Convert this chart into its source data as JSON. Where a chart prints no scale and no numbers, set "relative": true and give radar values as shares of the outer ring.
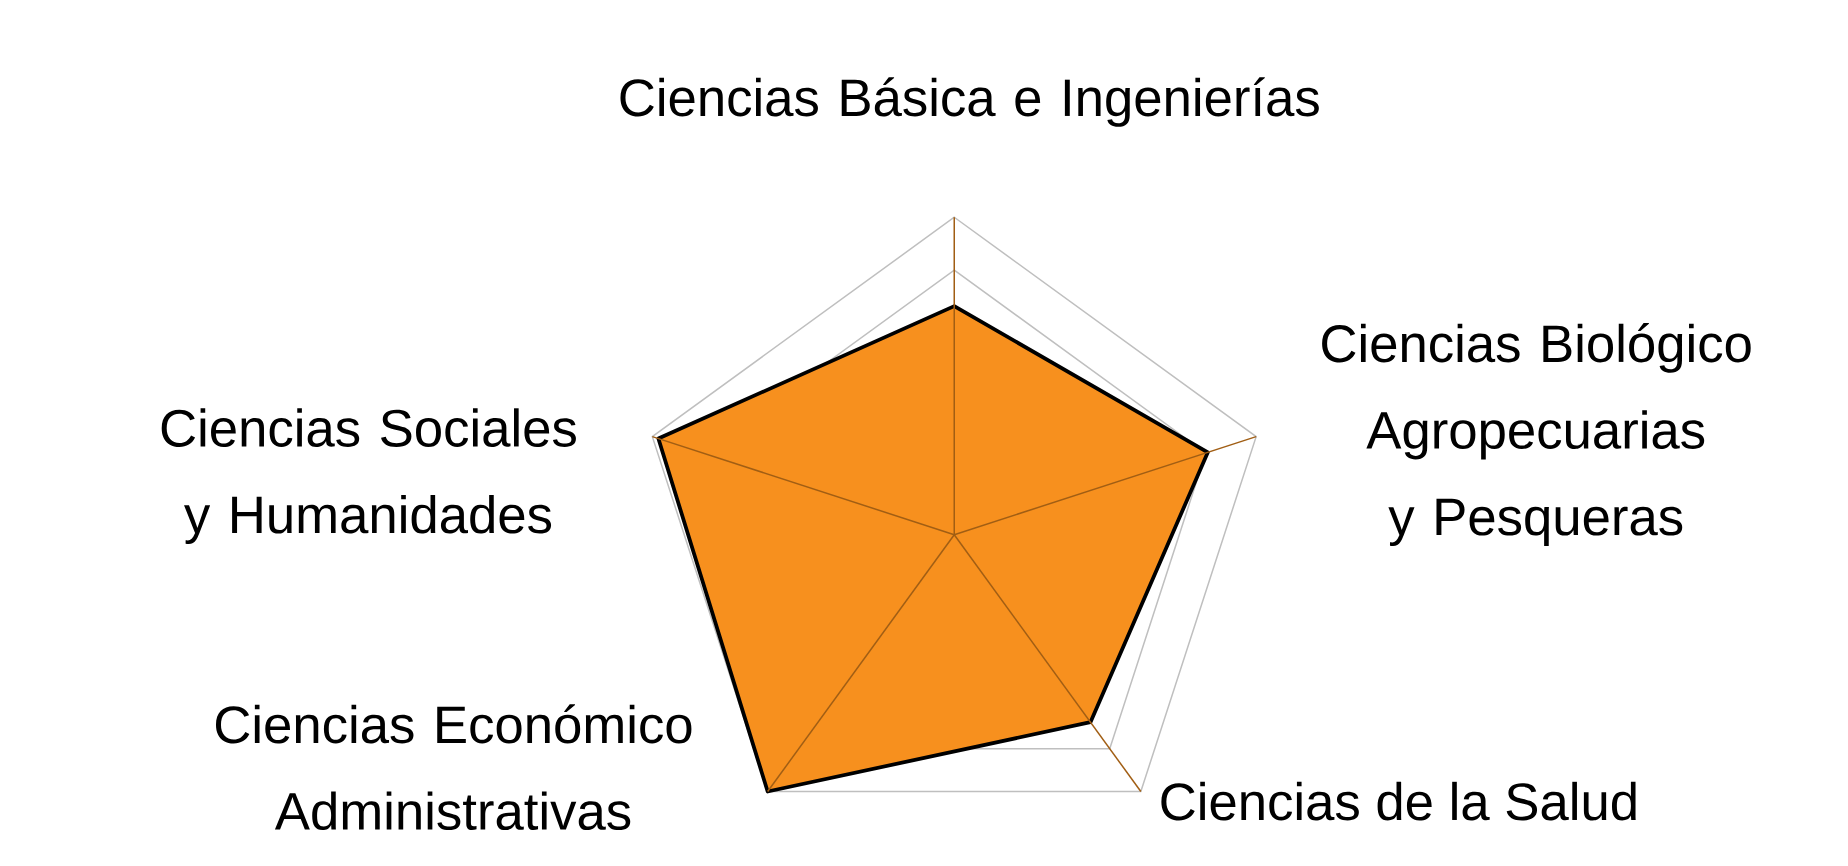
{
  "chart_data": {
    "type": "radar",
    "relative": true,
    "grid": true,
    "categories": [
      "Ciencias Básica e Ingenierías",
      "Ciencias Biológico Agropecuarias y Pesqueras",
      "Ciencias de la Salud",
      "Ciencias Económico Administrativas",
      "Ciencias Sociales y Humanidades"
    ],
    "series": [
      {
        "color": "#f7901e",
        "values": [
          0.72,
          0.84,
          0.73,
          1.0,
          0.98
        ]
      }
    ]
  }
}
